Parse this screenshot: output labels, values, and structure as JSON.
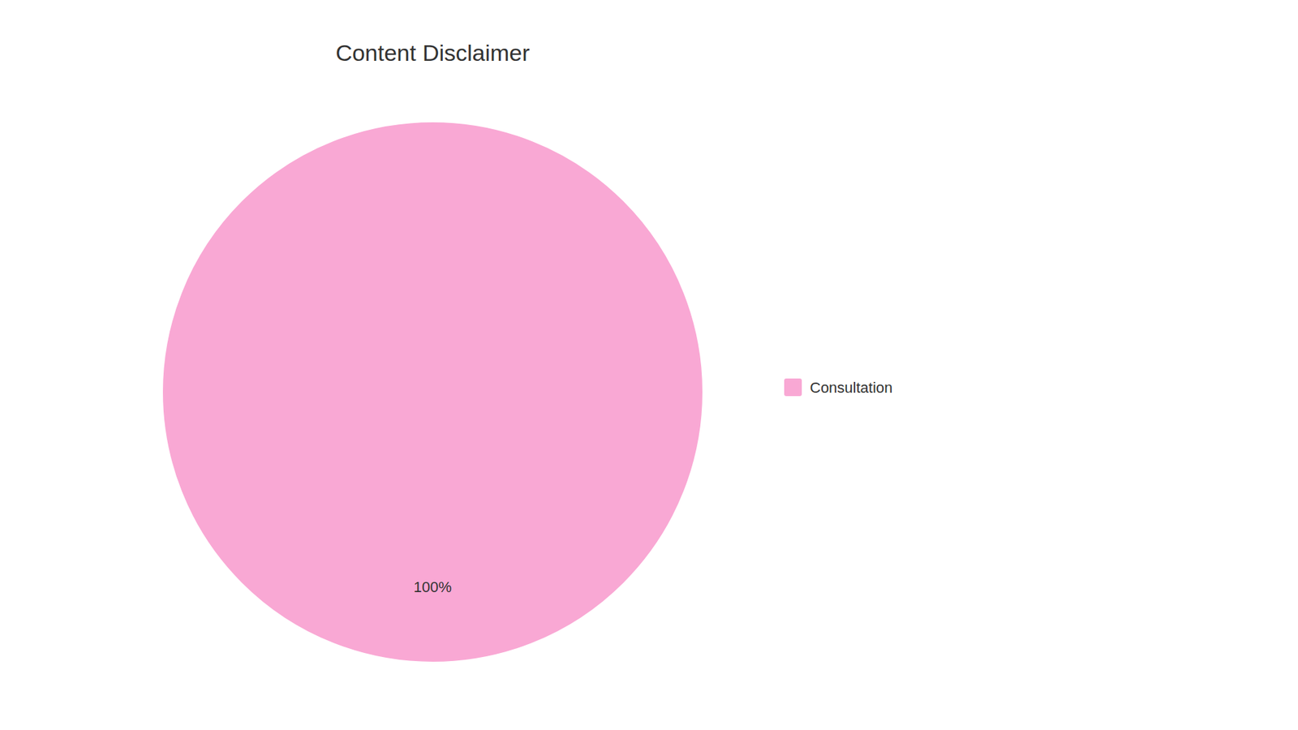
{
  "chart_data": {
    "type": "pie",
    "title": "Content Disclaimer",
    "categories": [
      "Consultation"
    ],
    "values": [
      100
    ],
    "value_labels": [
      "100%"
    ],
    "colors": [
      "#F9A8D4"
    ],
    "data_labels": true,
    "legend": "right"
  }
}
